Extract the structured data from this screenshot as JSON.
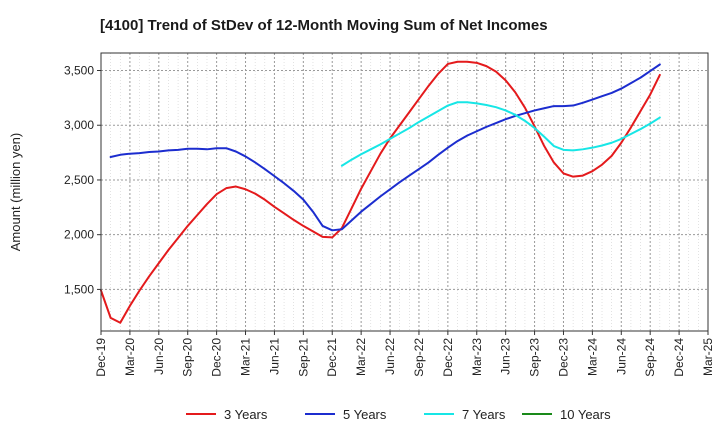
{
  "chart_data": {
    "type": "line",
    "title": "[4100]  Trend of StDev of 12-Month Moving Sum of Net Incomes",
    "ylabel": "Amount (million yen)",
    "xlabel": "",
    "ylim": [
      1120,
      3660
    ],
    "yticks": [
      1500,
      2000,
      2500,
      3000,
      3500
    ],
    "ytick_labels": [
      "1,500",
      "2,000",
      "2,500",
      "3,000",
      "3,500"
    ],
    "xlim": [
      "2019-12",
      "2025-03"
    ],
    "x_tick_labels": [
      "Dec-19",
      "Mar-20",
      "Jun-20",
      "Sep-20",
      "Dec-20",
      "Mar-21",
      "Jun-21",
      "Sep-21",
      "Dec-21",
      "Mar-22",
      "Jun-22",
      "Sep-22",
      "Dec-22",
      "Mar-23",
      "Jun-23",
      "Sep-23",
      "Dec-23",
      "Mar-24",
      "Jun-24",
      "Sep-24",
      "Dec-24",
      "Mar-25"
    ],
    "grid": true,
    "legend_position": "bottom",
    "series": [
      {
        "name": "3 Years",
        "color": "#e41a1c",
        "points": [
          [
            "2019-12",
            1490
          ],
          [
            "2020-01",
            1240
          ],
          [
            "2020-02",
            1195
          ],
          [
            "2020-03",
            1350
          ],
          [
            "2020-04",
            1490
          ],
          [
            "2020-05",
            1620
          ],
          [
            "2020-06",
            1740
          ],
          [
            "2020-07",
            1860
          ],
          [
            "2020-08",
            1970
          ],
          [
            "2020-09",
            2080
          ],
          [
            "2020-10",
            2180
          ],
          [
            "2020-11",
            2280
          ],
          [
            "2020-12",
            2370
          ],
          [
            "2021-01",
            2425
          ],
          [
            "2021-02",
            2440
          ],
          [
            "2021-03",
            2415
          ],
          [
            "2021-04",
            2375
          ],
          [
            "2021-05",
            2320
          ],
          [
            "2021-06",
            2255
          ],
          [
            "2021-07",
            2195
          ],
          [
            "2021-08",
            2135
          ],
          [
            "2021-09",
            2080
          ],
          [
            "2021-10",
            2030
          ],
          [
            "2021-11",
            1980
          ],
          [
            "2021-12",
            1975
          ],
          [
            "2022-01",
            2060
          ],
          [
            "2022-02",
            2240
          ],
          [
            "2022-03",
            2420
          ],
          [
            "2022-04",
            2580
          ],
          [
            "2022-05",
            2740
          ],
          [
            "2022-06",
            2880
          ],
          [
            "2022-07",
            3000
          ],
          [
            "2022-08",
            3120
          ],
          [
            "2022-09",
            3240
          ],
          [
            "2022-10",
            3360
          ],
          [
            "2022-11",
            3470
          ],
          [
            "2022-12",
            3560
          ],
          [
            "2023-01",
            3580
          ],
          [
            "2023-02",
            3580
          ],
          [
            "2023-03",
            3570
          ],
          [
            "2023-04",
            3540
          ],
          [
            "2023-05",
            3490
          ],
          [
            "2023-06",
            3410
          ],
          [
            "2023-07",
            3300
          ],
          [
            "2023-08",
            3160
          ],
          [
            "2023-09",
            2990
          ],
          [
            "2023-10",
            2810
          ],
          [
            "2023-11",
            2660
          ],
          [
            "2023-12",
            2560
          ],
          [
            "2024-01",
            2530
          ],
          [
            "2024-02",
            2540
          ],
          [
            "2024-03",
            2580
          ],
          [
            "2024-04",
            2640
          ],
          [
            "2024-05",
            2720
          ],
          [
            "2024-06",
            2840
          ],
          [
            "2024-07",
            2980
          ],
          [
            "2024-08",
            3130
          ],
          [
            "2024-09",
            3280
          ],
          [
            "2024-10",
            3460
          ]
        ]
      },
      {
        "name": "5 Years",
        "color": "#1c2dcf",
        "points": [
          [
            "2020-01",
            2710
          ],
          [
            "2020-02",
            2730
          ],
          [
            "2020-03",
            2740
          ],
          [
            "2020-04",
            2745
          ],
          [
            "2020-05",
            2755
          ],
          [
            "2020-06",
            2760
          ],
          [
            "2020-07",
            2770
          ],
          [
            "2020-08",
            2775
          ],
          [
            "2020-09",
            2785
          ],
          [
            "2020-10",
            2785
          ],
          [
            "2020-11",
            2780
          ],
          [
            "2020-12",
            2790
          ],
          [
            "2021-01",
            2790
          ],
          [
            "2021-02",
            2760
          ],
          [
            "2021-03",
            2715
          ],
          [
            "2021-04",
            2660
          ],
          [
            "2021-05",
            2600
          ],
          [
            "2021-06",
            2535
          ],
          [
            "2021-07",
            2470
          ],
          [
            "2021-08",
            2400
          ],
          [
            "2021-09",
            2320
          ],
          [
            "2021-10",
            2210
          ],
          [
            "2021-11",
            2080
          ],
          [
            "2021-12",
            2040
          ],
          [
            "2022-01",
            2050
          ],
          [
            "2022-02",
            2130
          ],
          [
            "2022-03",
            2210
          ],
          [
            "2022-04",
            2280
          ],
          [
            "2022-05",
            2350
          ],
          [
            "2022-06",
            2415
          ],
          [
            "2022-07",
            2480
          ],
          [
            "2022-08",
            2540
          ],
          [
            "2022-09",
            2600
          ],
          [
            "2022-10",
            2660
          ],
          [
            "2022-11",
            2730
          ],
          [
            "2022-12",
            2795
          ],
          [
            "2023-01",
            2855
          ],
          [
            "2023-02",
            2905
          ],
          [
            "2023-03",
            2945
          ],
          [
            "2023-04",
            2985
          ],
          [
            "2023-05",
            3020
          ],
          [
            "2023-06",
            3055
          ],
          [
            "2023-07",
            3085
          ],
          [
            "2023-08",
            3110
          ],
          [
            "2023-09",
            3135
          ],
          [
            "2023-10",
            3155
          ],
          [
            "2023-11",
            3175
          ],
          [
            "2023-12",
            3175
          ],
          [
            "2024-01",
            3180
          ],
          [
            "2024-02",
            3205
          ],
          [
            "2024-03",
            3235
          ],
          [
            "2024-04",
            3265
          ],
          [
            "2024-05",
            3295
          ],
          [
            "2024-06",
            3335
          ],
          [
            "2024-07",
            3385
          ],
          [
            "2024-08",
            3435
          ],
          [
            "2024-09",
            3495
          ],
          [
            "2024-10",
            3555
          ]
        ]
      },
      {
        "name": "7 Years",
        "color": "#17e6e6",
        "points": [
          [
            "2022-01",
            2630
          ],
          [
            "2022-02",
            2685
          ],
          [
            "2022-03",
            2735
          ],
          [
            "2022-04",
            2780
          ],
          [
            "2022-05",
            2825
          ],
          [
            "2022-06",
            2875
          ],
          [
            "2022-07",
            2925
          ],
          [
            "2022-08",
            2975
          ],
          [
            "2022-09",
            3030
          ],
          [
            "2022-10",
            3080
          ],
          [
            "2022-11",
            3130
          ],
          [
            "2022-12",
            3180
          ],
          [
            "2023-01",
            3210
          ],
          [
            "2023-02",
            3210
          ],
          [
            "2023-03",
            3200
          ],
          [
            "2023-04",
            3185
          ],
          [
            "2023-05",
            3165
          ],
          [
            "2023-06",
            3135
          ],
          [
            "2023-07",
            3095
          ],
          [
            "2023-08",
            3040
          ],
          [
            "2023-09",
            2975
          ],
          [
            "2023-10",
            2895
          ],
          [
            "2023-11",
            2810
          ],
          [
            "2023-12",
            2775
          ],
          [
            "2024-01",
            2770
          ],
          [
            "2024-02",
            2780
          ],
          [
            "2024-03",
            2795
          ],
          [
            "2024-04",
            2815
          ],
          [
            "2024-05",
            2840
          ],
          [
            "2024-06",
            2875
          ],
          [
            "2024-07",
            2920
          ],
          [
            "2024-08",
            2965
          ],
          [
            "2024-09",
            3015
          ],
          [
            "2024-10",
            3070
          ]
        ]
      },
      {
        "name": "10 Years",
        "color": "#1a8a1a",
        "points": []
      }
    ]
  }
}
